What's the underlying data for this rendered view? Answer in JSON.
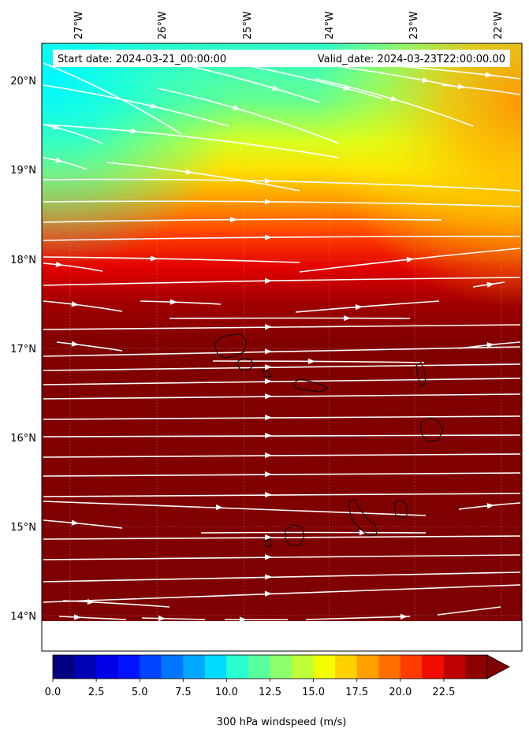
{
  "map": {
    "start_label": "Start date: 2024-03-21_00:00:00",
    "valid_label": "Valid_date: 2024-03-23T22:00:00.00",
    "lon_ticks": [
      "27°W",
      "26°W",
      "25°W",
      "24°W",
      "23°W",
      "22°W"
    ],
    "lat_ticks": [
      "20°N",
      "19°N",
      "18°N",
      "17°N",
      "16°N",
      "15°N",
      "14°N"
    ],
    "land_color": "#7f0000",
    "streamline_color": "#ffffff",
    "coastline_color": "#000000"
  },
  "colorbar": {
    "label": "300 hPa windspeed (m/s)",
    "min": 0,
    "max": 25,
    "ticks": [
      "0.0",
      "2.5",
      "5.0",
      "7.5",
      "10.0",
      "12.5",
      "15.0",
      "17.5",
      "20.0",
      "22.5"
    ],
    "extend": "max",
    "colors": [
      "#000080",
      "#0000b5",
      "#0000ea",
      "#0012ff",
      "#0044ff",
      "#0076ff",
      "#00a8ff",
      "#00dcfe",
      "#29ffce",
      "#5aff9d",
      "#8dff6a",
      "#bfff39",
      "#f2fd00",
      "#ffd000",
      "#ffa000",
      "#ff6f00",
      "#ff3c00",
      "#f20b00",
      "#bf0000",
      "#8d0000"
    ]
  }
}
